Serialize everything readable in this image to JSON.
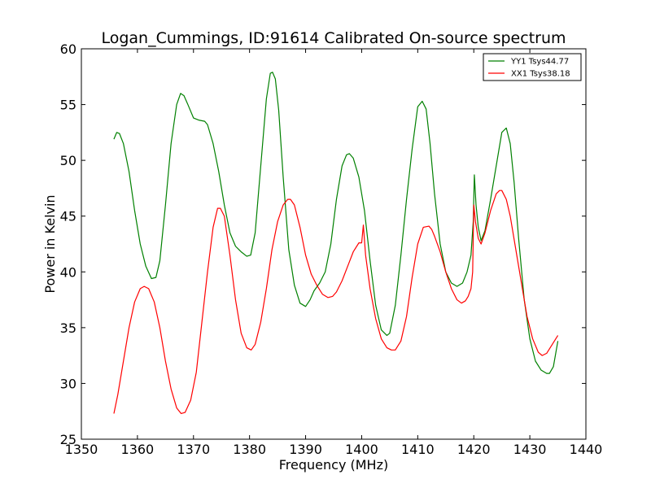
{
  "chart_data": {
    "type": "line",
    "title": "Logan_Cummings, ID:91614 Calibrated On-source spectrum",
    "xlabel": "Frequency (MHz)",
    "ylabel": "Power in Kelvin",
    "xlim": [
      1350,
      1440
    ],
    "ylim": [
      25,
      60
    ],
    "xticks": [
      "1350",
      "1360",
      "1370",
      "1380",
      "1390",
      "1400",
      "1410",
      "1420",
      "1430",
      "1440"
    ],
    "yticks": [
      "25",
      "30",
      "35",
      "40",
      "45",
      "50",
      "55",
      "60"
    ],
    "grid": false,
    "legend_position": "top-right",
    "series": [
      {
        "name": "YY1 Tsys44.77",
        "color": "#008000",
        "x": [
          1355.8,
          1356.3,
          1356.8,
          1357.5,
          1358.5,
          1359.5,
          1360.5,
          1361.5,
          1362.5,
          1363.3,
          1364.0,
          1365.0,
          1366.0,
          1367.0,
          1367.7,
          1368.3,
          1369.0,
          1370.0,
          1371.0,
          1372.0,
          1372.5,
          1373.5,
          1374.5,
          1375.5,
          1376.5,
          1377.5,
          1378.5,
          1379.5,
          1380.2,
          1381.0,
          1382.0,
          1383.0,
          1383.7,
          1384.1,
          1384.6,
          1385.2,
          1386.0,
          1387.0,
          1388.0,
          1389.0,
          1390.0,
          1390.8,
          1391.5,
          1392.5,
          1393.5,
          1394.5,
          1395.5,
          1396.5,
          1397.3,
          1397.8,
          1398.5,
          1399.5,
          1400.5,
          1401.5,
          1402.5,
          1403.5,
          1404.5,
          1405.0,
          1406.0,
          1407.0,
          1408.0,
          1409.0,
          1410.0,
          1410.8,
          1411.5,
          1412.2,
          1413.0,
          1414.0,
          1415.0,
          1416.0,
          1417.0,
          1418.0,
          1418.8,
          1419.5,
          1419.9,
          1420.1,
          1420.4,
          1420.8,
          1421.3,
          1422.0,
          1423.0,
          1424.0,
          1425.0,
          1425.8,
          1426.5,
          1427.2,
          1428.0,
          1429.0,
          1430.0,
          1431.0,
          1432.0,
          1433.0,
          1433.5,
          1434.2,
          1435.0
        ],
        "y": [
          51.9,
          52.5,
          52.4,
          51.5,
          49.0,
          45.5,
          42.5,
          40.5,
          39.4,
          39.5,
          41.0,
          46.0,
          51.5,
          55.0,
          56.0,
          55.8,
          55.0,
          53.8,
          53.6,
          53.5,
          53.2,
          51.5,
          49.0,
          46.0,
          43.5,
          42.3,
          41.8,
          41.4,
          41.5,
          43.5,
          49.5,
          55.5,
          57.8,
          57.9,
          57.3,
          54.5,
          48.5,
          42.0,
          38.8,
          37.2,
          36.9,
          37.5,
          38.3,
          39.0,
          40.0,
          42.5,
          46.5,
          49.5,
          50.5,
          50.6,
          50.2,
          48.5,
          45.5,
          41.0,
          37.0,
          34.8,
          34.3,
          34.5,
          37.0,
          41.5,
          46.5,
          51.0,
          54.8,
          55.3,
          54.6,
          51.5,
          47.0,
          42.5,
          40.0,
          39.0,
          38.7,
          39.0,
          40.0,
          41.5,
          44.5,
          48.7,
          46.0,
          44.0,
          42.8,
          43.7,
          46.5,
          49.5,
          52.5,
          52.9,
          51.5,
          48.0,
          43.0,
          37.5,
          34.0,
          32.0,
          31.2,
          30.9,
          30.9,
          31.5,
          33.8
        ]
      },
      {
        "name": "XX1 Tsys38.18",
        "color": "#ff0000",
        "x": [
          1355.8,
          1356.5,
          1357.5,
          1358.5,
          1359.5,
          1360.5,
          1361.2,
          1362.0,
          1363.0,
          1364.0,
          1365.0,
          1366.0,
          1367.0,
          1367.8,
          1368.5,
          1369.5,
          1370.5,
          1371.5,
          1372.5,
          1373.5,
          1374.3,
          1374.8,
          1375.5,
          1376.5,
          1377.5,
          1378.5,
          1379.5,
          1380.3,
          1381.0,
          1382.0,
          1383.0,
          1384.0,
          1385.0,
          1386.0,
          1386.8,
          1387.3,
          1388.0,
          1389.0,
          1390.0,
          1391.0,
          1392.0,
          1393.0,
          1394.0,
          1394.8,
          1395.5,
          1396.5,
          1397.5,
          1398.5,
          1399.5,
          1400.0,
          1400.3,
          1400.7,
          1401.5,
          1402.5,
          1403.5,
          1404.5,
          1405.3,
          1406.0,
          1407.0,
          1408.0,
          1409.0,
          1410.0,
          1411.0,
          1412.0,
          1412.5,
          1413.0,
          1414.0,
          1415.0,
          1416.0,
          1417.0,
          1417.8,
          1418.5,
          1419.0,
          1419.5,
          1419.8,
          1420.0,
          1420.3,
          1420.8,
          1421.3,
          1422.0,
          1423.0,
          1424.0,
          1424.6,
          1425.0,
          1425.8,
          1426.5,
          1427.5,
          1428.5,
          1429.5,
          1430.5,
          1431.5,
          1432.2,
          1433.0,
          1434.0,
          1435.0
        ],
        "y": [
          27.3,
          29.0,
          32.0,
          35.0,
          37.3,
          38.5,
          38.7,
          38.5,
          37.3,
          35.0,
          32.0,
          29.5,
          27.8,
          27.3,
          27.4,
          28.5,
          31.0,
          35.5,
          40.0,
          44.0,
          45.7,
          45.7,
          45.0,
          41.5,
          37.5,
          34.5,
          33.2,
          33.0,
          33.5,
          35.5,
          38.5,
          42.0,
          44.5,
          46.0,
          46.5,
          46.5,
          46.0,
          44.0,
          41.5,
          39.8,
          38.8,
          38.0,
          37.7,
          37.8,
          38.2,
          39.2,
          40.5,
          41.8,
          42.6,
          42.6,
          44.2,
          41.5,
          38.5,
          35.8,
          34.0,
          33.2,
          33.0,
          33.0,
          33.8,
          36.0,
          39.5,
          42.5,
          44.0,
          44.1,
          43.8,
          43.2,
          41.8,
          40.0,
          38.5,
          37.5,
          37.2,
          37.4,
          37.8,
          38.5,
          40.0,
          46.0,
          44.5,
          43.0,
          42.5,
          43.5,
          45.5,
          47.0,
          47.3,
          47.3,
          46.5,
          45.0,
          42.0,
          39.0,
          36.0,
          34.0,
          32.8,
          32.5,
          32.7,
          33.5,
          34.3
        ]
      }
    ]
  }
}
